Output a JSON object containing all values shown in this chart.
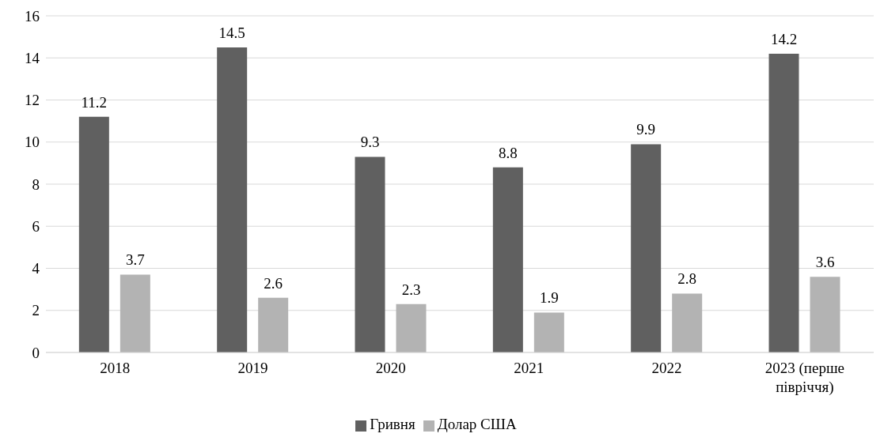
{
  "chart_data": {
    "type": "bar",
    "categories": [
      "2018",
      "2019",
      "2020",
      "2021",
      "2022",
      "2023 (перше півріччя)"
    ],
    "series": [
      {
        "name": "Гривня",
        "color": "#606060",
        "values": [
          11.2,
          14.5,
          9.3,
          8.8,
          9.9,
          14.2
        ]
      },
      {
        "name": "Долар США",
        "color": "#b3b3b3",
        "values": [
          3.7,
          2.6,
          2.3,
          1.9,
          2.8,
          3.6
        ]
      }
    ],
    "ylim": [
      0,
      16
    ],
    "yticks": [
      0,
      2,
      4,
      6,
      8,
      10,
      12,
      14,
      16
    ],
    "grid": "y",
    "legend": "bottom",
    "data_labels": true
  }
}
